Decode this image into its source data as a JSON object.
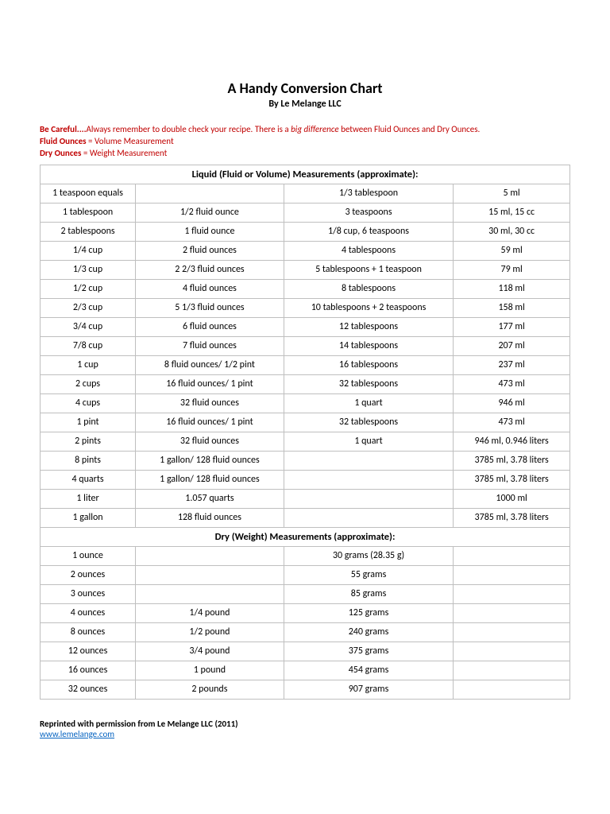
{
  "title": "A Handy Conversion Chart",
  "subtitle": "By Le Melange LLC",
  "warn": {
    "lead": "Be Careful....",
    "text1": "Always remember to double check your recipe. There is a ",
    "ital": "big difference",
    "text2": " between Fluid Ounces and Dry Ounces.",
    "fluid_label": "Fluid Ounces",
    "fluid_eq": " = Volume Measurement",
    "dry_label": "Dry Ounces",
    "dry_eq": " = Weight Measurement"
  },
  "section1": "Liquid (Fluid or Volume) Measurements (approximate):",
  "liquid_rows": [
    [
      "1 teaspoon equals",
      "",
      "1/3 tablespoon",
      "5 ml"
    ],
    [
      "1 tablespoon",
      "1/2 fluid ounce",
      "3 teaspoons",
      "15 ml, 15 cc"
    ],
    [
      "2 tablespoons",
      "1 fluid ounce",
      "1/8 cup, 6 teaspoons",
      "30 ml, 30 cc"
    ],
    [
      "1/4 cup",
      "2 fluid ounces",
      "4 tablespoons",
      "59 ml"
    ],
    [
      "1/3 cup",
      "2 2/3 fluid ounces",
      "5 tablespoons + 1 teaspoon",
      "79 ml"
    ],
    [
      "1/2 cup",
      "4 fluid ounces",
      "8 tablespoons",
      "118 ml"
    ],
    [
      "2/3 cup",
      "5 1/3 fluid ounces",
      "10 tablespoons + 2 teaspoons",
      "158 ml"
    ],
    [
      "3/4 cup",
      "6 fluid ounces",
      "12 tablespoons",
      "177 ml"
    ],
    [
      "7/8 cup",
      "7 fluid ounces",
      "14 tablespoons",
      "207 ml"
    ],
    [
      "1 cup",
      "8 fluid ounces/ 1/2 pint",
      "16 tablespoons",
      "237 ml"
    ],
    [
      "2 cups",
      "16 fluid ounces/ 1 pint",
      "32 tablespoons",
      "473 ml"
    ],
    [
      "4 cups",
      "32 fluid ounces",
      "1 quart",
      "946 ml"
    ],
    [
      "1 pint",
      "16 fluid ounces/ 1 pint",
      "32 tablespoons",
      "473 ml"
    ],
    [
      "2 pints",
      "32 fluid ounces",
      "1 quart",
      "946 ml, 0.946 liters"
    ],
    [
      "8 pints",
      "1 gallon/ 128 fluid ounces",
      "",
      "3785 ml, 3.78 liters"
    ],
    [
      "4 quarts",
      "1 gallon/ 128 fluid ounces",
      "",
      "3785 ml, 3.78 liters"
    ],
    [
      "1 liter",
      "1.057 quarts",
      "",
      "1000 ml"
    ],
    [
      "1 gallon",
      "128 fluid ounces",
      "",
      "3785 ml, 3.78 liters"
    ]
  ],
  "section2": "Dry (Weight) Measurements (approximate):",
  "dry_rows": [
    [
      "1 ounce",
      "",
      "30 grams (28.35 g)",
      ""
    ],
    [
      "2 ounces",
      "",
      "55 grams",
      ""
    ],
    [
      "3 ounces",
      "",
      "85 grams",
      ""
    ],
    [
      "4 ounces",
      "1/4 pound",
      "125 grams",
      ""
    ],
    [
      "8 ounces",
      "1/2 pound",
      "240 grams",
      ""
    ],
    [
      "12 ounces",
      "3/4 pound",
      "375 grams",
      ""
    ],
    [
      "16 ounces",
      "1 pound",
      "454 grams",
      ""
    ],
    [
      "32 ounces",
      "2 pounds",
      "907 grams",
      ""
    ]
  ],
  "footer_text": "Reprinted with permission from Le Melange LLC (2011)",
  "footer_link": "www.lemelange.com",
  "colors": {
    "warn": "#c00000",
    "link": "#0563c1",
    "border": "#bfbfbf",
    "text": "#000000",
    "bg": "#ffffff"
  },
  "fonts": {
    "title_size": 18,
    "body_size": 12,
    "small_size": 11
  }
}
